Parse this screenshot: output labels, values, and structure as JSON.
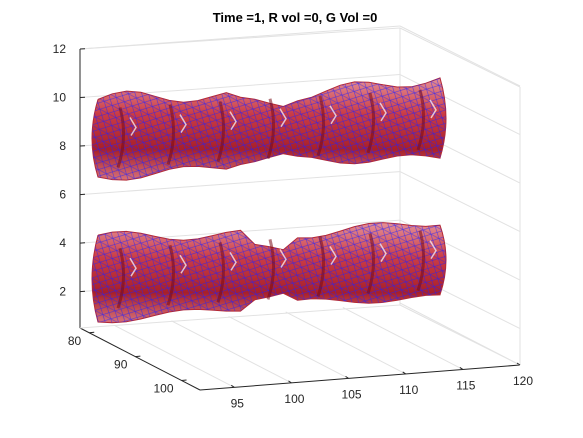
{
  "chart_data": {
    "type": "3d-isosurface",
    "title": "Time =1, R vol =0, G Vol =0",
    "xlabel": "",
    "ylabel": "",
    "zlabel": "",
    "x_ticks": [
      95,
      100,
      105,
      110,
      115,
      120
    ],
    "y_ticks": [
      80,
      90,
      100
    ],
    "z_ticks": [
      2,
      4,
      6,
      8,
      10,
      12
    ],
    "xlim": [
      92,
      120
    ],
    "ylim": [
      78,
      104
    ],
    "zlim": [
      0.5,
      12
    ],
    "grid": true,
    "view": "3-D perspective",
    "surfaces": [
      {
        "kind": "filled",
        "color": "#c8323c",
        "z_center": 8.3,
        "x_range": [
          94,
          116
        ],
        "description_level": "upper-tube"
      },
      {
        "kind": "filled",
        "color": "#c8323c",
        "z_center": 2.5,
        "x_range": [
          94,
          116
        ],
        "description_level": "lower-tube"
      },
      {
        "kind": "wireframe",
        "color": "#1a1aff",
        "z_center": 8.3,
        "x_range": [
          94,
          116
        ]
      },
      {
        "kind": "wireframe",
        "color": "#1a1aff",
        "z_center": 2.5,
        "x_range": [
          94,
          116
        ]
      }
    ]
  }
}
